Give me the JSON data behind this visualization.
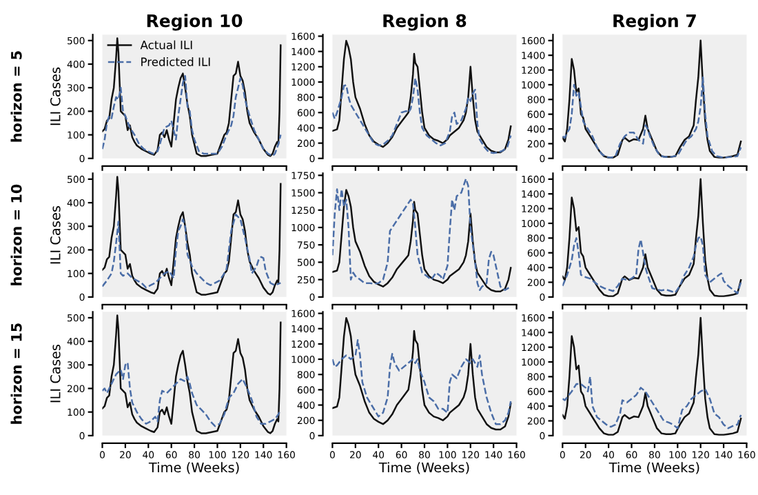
{
  "chart_data": [
    {
      "type": "line",
      "title": "Region 10",
      "ylabel": "ILI Cases",
      "annotations": [
        "horizon = 5"
      ],
      "xlim": [
        0,
        160
      ],
      "xticks": [
        0,
        20,
        40,
        60,
        80,
        100,
        120,
        140,
        160
      ],
      "ylim": [
        0,
        525
      ],
      "yticks": [
        0,
        100,
        200,
        300,
        400,
        500
      ],
      "tick_labels": "y",
      "legend": "top left",
      "grid": false,
      "series": [
        {
          "name": "Actual ILI",
          "color": "#111111",
          "line_style": "solid",
          "x": [
            0,
            2,
            4,
            6,
            8,
            10,
            12,
            13,
            14,
            16,
            18,
            20,
            22,
            24,
            26,
            28,
            30,
            34,
            38,
            42,
            45,
            48,
            50,
            52,
            54,
            56,
            58,
            60,
            62,
            64,
            66,
            68,
            70,
            72,
            74,
            76,
            78,
            80,
            82,
            86,
            90,
            95,
            100,
            103,
            106,
            108,
            110,
            112,
            114,
            116,
            118,
            120,
            122,
            124,
            126,
            128,
            132,
            136,
            140,
            144,
            146,
            148,
            150,
            152,
            153,
            154,
            155
          ],
          "values": [
            115,
            125,
            160,
            170,
            250,
            300,
            430,
            510,
            450,
            200,
            190,
            180,
            120,
            140,
            90,
            70,
            55,
            40,
            30,
            20,
            15,
            35,
            100,
            110,
            90,
            120,
            80,
            50,
            150,
            250,
            300,
            340,
            360,
            300,
            230,
            180,
            100,
            60,
            20,
            10,
            10,
            15,
            20,
            60,
            100,
            110,
            150,
            250,
            350,
            360,
            410,
            350,
            330,
            280,
            200,
            150,
            110,
            80,
            40,
            15,
            10,
            20,
            50,
            70,
            60,
            200,
            480
          ]
        },
        {
          "name": "Predicted ILI",
          "color": "#4a6da7",
          "line_style": "dashed",
          "x": [
            0,
            2,
            4,
            6,
            8,
            10,
            12,
            14,
            16,
            18,
            20,
            24,
            28,
            32,
            36,
            40,
            44,
            48,
            50,
            54,
            58,
            60,
            62,
            64,
            66,
            68,
            70,
            72,
            74,
            76,
            78,
            80,
            84,
            88,
            94,
            100,
            104,
            108,
            112,
            114,
            116,
            118,
            120,
            122,
            124,
            128,
            132,
            136,
            140,
            144,
            148,
            150,
            153,
            155
          ],
          "values": [
            40,
            80,
            150,
            180,
            170,
            220,
            260,
            250,
            300,
            200,
            180,
            130,
            100,
            60,
            40,
            30,
            20,
            30,
            60,
            130,
            140,
            160,
            120,
            80,
            180,
            250,
            320,
            350,
            220,
            200,
            120,
            80,
            30,
            20,
            20,
            20,
            50,
            100,
            140,
            180,
            260,
            300,
            340,
            310,
            250,
            180,
            120,
            80,
            40,
            20,
            10,
            20,
            60,
            100
          ]
        }
      ]
    },
    {
      "type": "line",
      "title": "Region 8",
      "xlim": [
        0,
        160
      ],
      "xticks": [
        0,
        20,
        40,
        60,
        80,
        100,
        120,
        140,
        160
      ],
      "ylim": [
        0,
        1620
      ],
      "yticks": [
        0,
        200,
        400,
        600,
        800,
        1000,
        1200,
        1400,
        1600
      ],
      "tick_labels": "y",
      "grid": false,
      "series": [
        {
          "color": "#111111",
          "line_style": "solid",
          "x": [
            0,
            4,
            6,
            8,
            10,
            12,
            14,
            16,
            18,
            20,
            24,
            28,
            32,
            36,
            40,
            44,
            48,
            52,
            56,
            60,
            64,
            66,
            68,
            70,
            71,
            72,
            74,
            76,
            78,
            80,
            84,
            88,
            92,
            96,
            100,
            102,
            106,
            110,
            114,
            116,
            118,
            120,
            122,
            124,
            126,
            130,
            134,
            138,
            142,
            146,
            150,
            153,
            155
          ],
          "values": [
            360,
            380,
            500,
            900,
            1300,
            1540,
            1450,
            1300,
            1000,
            800,
            650,
            450,
            300,
            220,
            180,
            150,
            200,
            280,
            400,
            480,
            560,
            600,
            800,
            1100,
            1370,
            1250,
            1200,
            900,
            600,
            400,
            300,
            250,
            230,
            200,
            250,
            300,
            350,
            400,
            500,
            600,
            800,
            1200,
            800,
            500,
            350,
            250,
            150,
            100,
            80,
            80,
            120,
            250,
            420
          ]
        },
        {
          "color": "#4a6da7",
          "line_style": "dashed",
          "x": [
            0,
            2,
            4,
            6,
            8,
            10,
            12,
            14,
            16,
            20,
            24,
            28,
            32,
            36,
            40,
            44,
            48,
            52,
            56,
            60,
            64,
            66,
            68,
            70,
            72,
            74,
            76,
            78,
            82,
            86,
            90,
            94,
            98,
            102,
            104,
            106,
            108,
            112,
            116,
            118,
            120,
            122,
            124,
            126,
            128,
            132,
            136,
            140,
            144,
            148,
            152,
            155
          ],
          "values": [
            600,
            520,
            600,
            700,
            800,
            950,
            960,
            800,
            700,
            600,
            500,
            400,
            300,
            200,
            170,
            180,
            230,
            300,
            450,
            600,
            620,
            600,
            650,
            800,
            1050,
            900,
            600,
            400,
            300,
            250,
            200,
            170,
            200,
            350,
            550,
            600,
            450,
            500,
            650,
            800,
            750,
            850,
            900,
            450,
            250,
            150,
            80,
            70,
            80,
            100,
            150,
            300
          ]
        }
      ]
    },
    {
      "type": "line",
      "title": "Region 7",
      "xlim": [
        0,
        160
      ],
      "xticks": [
        0,
        20,
        40,
        60,
        80,
        100,
        120,
        140,
        160
      ],
      "ylim": [
        0,
        1680
      ],
      "yticks": [
        0,
        200,
        400,
        600,
        800,
        1000,
        1200,
        1400,
        1600
      ],
      "tick_labels": "y",
      "grid": false,
      "series": [
        {
          "color": "#111111",
          "line_style": "solid",
          "x": [
            0,
            2,
            4,
            6,
            8,
            10,
            12,
            14,
            16,
            18,
            20,
            24,
            28,
            32,
            36,
            40,
            44,
            48,
            50,
            52,
            54,
            58,
            62,
            66,
            70,
            72,
            74,
            78,
            82,
            86,
            90,
            94,
            98,
            102,
            106,
            110,
            114,
            116,
            118,
            120,
            122,
            124,
            126,
            128,
            132,
            136,
            140,
            144,
            148,
            152,
            155
          ],
          "values": [
            280,
            230,
            400,
            800,
            1350,
            1200,
            900,
            950,
            600,
            550,
            400,
            300,
            200,
            100,
            30,
            10,
            10,
            50,
            150,
            250,
            280,
            230,
            260,
            250,
            400,
            580,
            400,
            250,
            100,
            30,
            20,
            20,
            30,
            150,
            250,
            300,
            450,
            800,
            1100,
            1600,
            1000,
            500,
            250,
            100,
            20,
            10,
            10,
            20,
            30,
            50,
            230
          ]
        },
        {
          "color": "#4a6da7",
          "line_style": "dashed",
          "x": [
            0,
            2,
            4,
            6,
            8,
            10,
            12,
            14,
            16,
            18,
            22,
            26,
            30,
            34,
            38,
            42,
            46,
            50,
            54,
            58,
            62,
            66,
            70,
            72,
            74,
            76,
            80,
            84,
            88,
            94,
            100,
            104,
            108,
            112,
            116,
            118,
            120,
            122,
            124,
            126,
            130,
            134,
            140,
            146,
            152,
            155
          ],
          "values": [
            300,
            280,
            350,
            400,
            600,
            1000,
            850,
            900,
            700,
            500,
            400,
            300,
            150,
            60,
            20,
            10,
            30,
            200,
            300,
            350,
            350,
            250,
            200,
            450,
            400,
            300,
            150,
            50,
            20,
            20,
            40,
            150,
            250,
            300,
            400,
            500,
            700,
            1100,
            600,
            300,
            100,
            30,
            10,
            20,
            30,
            150
          ]
        }
      ]
    },
    {
      "type": "line",
      "ylabel": "ILI Cases",
      "annotations": [
        "horizon = 10"
      ],
      "xlim": [
        0,
        160
      ],
      "xticks": [
        0,
        20,
        40,
        60,
        80,
        100,
        120,
        140,
        160
      ],
      "ylim": [
        0,
        525
      ],
      "yticks": [
        0,
        100,
        200,
        300,
        400,
        500
      ],
      "tick_labels": "y",
      "grid": false,
      "series": [
        {
          "color": "#111111",
          "line_style": "solid",
          "x": [
            0,
            2,
            4,
            6,
            8,
            10,
            12,
            13,
            14,
            16,
            18,
            20,
            22,
            24,
            26,
            28,
            30,
            34,
            38,
            42,
            45,
            48,
            50,
            52,
            54,
            56,
            58,
            60,
            62,
            64,
            66,
            68,
            70,
            72,
            74,
            76,
            78,
            80,
            82,
            86,
            90,
            95,
            100,
            103,
            106,
            108,
            110,
            112,
            114,
            116,
            118,
            120,
            122,
            124,
            126,
            128,
            132,
            136,
            140,
            144,
            146,
            148,
            150,
            152,
            153,
            154,
            155
          ],
          "values": [
            115,
            125,
            160,
            170,
            250,
            300,
            430,
            510,
            450,
            200,
            190,
            180,
            120,
            140,
            90,
            70,
            55,
            40,
            30,
            20,
            15,
            35,
            100,
            110,
            90,
            120,
            80,
            50,
            150,
            250,
            300,
            340,
            360,
            300,
            230,
            180,
            100,
            60,
            20,
            10,
            10,
            15,
            20,
            60,
            100,
            110,
            150,
            250,
            350,
            360,
            410,
            350,
            330,
            280,
            200,
            150,
            110,
            80,
            40,
            15,
            10,
            20,
            50,
            70,
            60,
            200,
            480
          ]
        },
        {
          "color": "#4a6da7",
          "line_style": "dashed",
          "x": [
            0,
            4,
            8,
            10,
            12,
            14,
            16,
            18,
            22,
            26,
            30,
            34,
            38,
            42,
            46,
            50,
            54,
            58,
            62,
            64,
            66,
            68,
            70,
            72,
            74,
            78,
            82,
            86,
            90,
            94,
            98,
            102,
            106,
            108,
            112,
            116,
            120,
            124,
            128,
            130,
            134,
            136,
            138,
            140,
            142,
            146,
            150,
            155
          ],
          "values": [
            45,
            70,
            100,
            150,
            230,
            320,
            100,
            90,
            100,
            80,
            70,
            60,
            40,
            50,
            60,
            80,
            100,
            110,
            80,
            200,
            280,
            300,
            330,
            300,
            180,
            130,
            100,
            80,
            60,
            50,
            60,
            70,
            100,
            120,
            280,
            350,
            330,
            250,
            160,
            100,
            130,
            160,
            170,
            165,
            110,
            60,
            50,
            60
          ]
        }
      ]
    },
    {
      "type": "line",
      "xlim": [
        0,
        160
      ],
      "xticks": [
        0,
        20,
        40,
        60,
        80,
        100,
        120,
        140,
        160
      ],
      "ylim": [
        0,
        1780
      ],
      "yticks": [
        0,
        250,
        500,
        750,
        1000,
        1250,
        1500,
        1750
      ],
      "tick_labels": "y",
      "grid": false,
      "series": [
        {
          "color": "#111111",
          "line_style": "solid",
          "x": [
            0,
            4,
            6,
            8,
            10,
            12,
            14,
            16,
            18,
            20,
            24,
            28,
            32,
            36,
            40,
            44,
            48,
            52,
            56,
            60,
            64,
            66,
            68,
            70,
            71,
            72,
            74,
            76,
            78,
            80,
            84,
            88,
            92,
            96,
            100,
            102,
            106,
            110,
            114,
            116,
            118,
            120,
            122,
            124,
            126,
            130,
            134,
            138,
            142,
            146,
            150,
            153,
            155
          ],
          "values": [
            360,
            380,
            500,
            900,
            1300,
            1540,
            1450,
            1300,
            1000,
            800,
            650,
            450,
            300,
            220,
            180,
            150,
            200,
            280,
            400,
            480,
            560,
            600,
            800,
            1100,
            1370,
            1250,
            1200,
            900,
            600,
            400,
            300,
            250,
            230,
            200,
            250,
            300,
            350,
            400,
            500,
            600,
            800,
            1200,
            800,
            500,
            350,
            250,
            150,
            100,
            80,
            80,
            120,
            250,
            420
          ]
        },
        {
          "color": "#4a6da7",
          "line_style": "dashed",
          "x": [
            0,
            2,
            4,
            6,
            8,
            10,
            12,
            14,
            16,
            18,
            20,
            24,
            28,
            32,
            36,
            40,
            44,
            48,
            50,
            52,
            54,
            56,
            60,
            64,
            68,
            70,
            72,
            74,
            78,
            82,
            86,
            90,
            94,
            96,
            100,
            102,
            104,
            106,
            108,
            112,
            116,
            118,
            120,
            124,
            126,
            128,
            130,
            134,
            136,
            138,
            140,
            142,
            146,
            150,
            155
          ],
          "values": [
            600,
            1200,
            1550,
            1250,
            1550,
            1300,
            1400,
            1000,
            250,
            350,
            300,
            250,
            200,
            200,
            190,
            200,
            250,
            500,
            950,
            1000,
            1050,
            1100,
            1200,
            1300,
            1400,
            1350,
            1000,
            600,
            350,
            300,
            250,
            350,
            300,
            250,
            450,
            950,
            1400,
            1250,
            1450,
            1500,
            1700,
            1600,
            1000,
            500,
            200,
            100,
            150,
            200,
            550,
            650,
            600,
            450,
            150,
            100,
            150
          ]
        }
      ]
    },
    {
      "type": "line",
      "xlim": [
        0,
        160
      ],
      "xticks": [
        0,
        20,
        40,
        60,
        80,
        100,
        120,
        140,
        160
      ],
      "ylim": [
        0,
        1680
      ],
      "yticks": [
        0,
        200,
        400,
        600,
        800,
        1000,
        1200,
        1400,
        1600
      ],
      "tick_labels": "y",
      "grid": false,
      "series": [
        {
          "color": "#111111",
          "line_style": "solid",
          "x": [
            0,
            2,
            4,
            6,
            8,
            10,
            12,
            14,
            16,
            18,
            20,
            24,
            28,
            32,
            36,
            40,
            44,
            48,
            50,
            52,
            54,
            58,
            62,
            66,
            70,
            72,
            74,
            78,
            82,
            86,
            90,
            94,
            98,
            102,
            106,
            110,
            114,
            116,
            118,
            120,
            122,
            124,
            126,
            128,
            132,
            136,
            140,
            144,
            148,
            152,
            155
          ],
          "values": [
            280,
            230,
            400,
            800,
            1350,
            1200,
            900,
            950,
            600,
            550,
            400,
            300,
            200,
            100,
            30,
            10,
            10,
            50,
            150,
            250,
            280,
            230,
            260,
            250,
            400,
            580,
            400,
            250,
            100,
            30,
            20,
            20,
            30,
            150,
            250,
            300,
            450,
            800,
            1100,
            1600,
            1000,
            500,
            250,
            100,
            20,
            10,
            10,
            20,
            30,
            50,
            230
          ]
        },
        {
          "color": "#4a6da7",
          "line_style": "dashed",
          "x": [
            0,
            4,
            8,
            10,
            12,
            14,
            16,
            20,
            24,
            28,
            32,
            36,
            40,
            44,
            48,
            52,
            56,
            60,
            64,
            66,
            68,
            70,
            72,
            74,
            78,
            82,
            86,
            90,
            94,
            98,
            102,
            106,
            110,
            114,
            116,
            118,
            120,
            122,
            124,
            128,
            132,
            136,
            138,
            140,
            144,
            148,
            152,
            155
          ],
          "values": [
            150,
            300,
            500,
            700,
            800,
            600,
            300,
            270,
            250,
            200,
            150,
            120,
            100,
            80,
            150,
            250,
            230,
            250,
            300,
            650,
            780,
            600,
            400,
            300,
            120,
            100,
            90,
            100,
            80,
            60,
            150,
            300,
            400,
            550,
            700,
            800,
            820,
            700,
            300,
            200,
            250,
            300,
            320,
            220,
            150,
            100,
            50,
            200
          ]
        }
      ]
    },
    {
      "type": "line",
      "ylabel": "ILI Cases",
      "xlabel": "Time (Weeks)",
      "annotations": [
        "horizon = 15"
      ],
      "xlim": [
        0,
        160
      ],
      "xticks": [
        0,
        20,
        40,
        60,
        80,
        100,
        120,
        140,
        160
      ],
      "ylim": [
        0,
        525
      ],
      "yticks": [
        0,
        100,
        200,
        300,
        400,
        500
      ],
      "grid": false,
      "series": [
        {
          "color": "#111111",
          "line_style": "solid",
          "x": [
            0,
            2,
            4,
            6,
            8,
            10,
            12,
            13,
            14,
            16,
            18,
            20,
            22,
            24,
            26,
            28,
            30,
            34,
            38,
            42,
            45,
            48,
            50,
            52,
            54,
            56,
            58,
            60,
            62,
            64,
            66,
            68,
            70,
            72,
            74,
            76,
            78,
            80,
            82,
            86,
            90,
            95,
            100,
            103,
            106,
            108,
            110,
            112,
            114,
            116,
            118,
            120,
            122,
            124,
            126,
            128,
            132,
            136,
            140,
            144,
            146,
            148,
            150,
            152,
            153,
            154,
            155
          ],
          "values": [
            115,
            125,
            160,
            170,
            250,
            300,
            430,
            510,
            450,
            200,
            190,
            180,
            120,
            140,
            90,
            70,
            55,
            40,
            30,
            20,
            15,
            35,
            100,
            110,
            90,
            120,
            80,
            50,
            150,
            250,
            300,
            340,
            360,
            300,
            230,
            180,
            100,
            60,
            20,
            10,
            10,
            15,
            20,
            60,
            100,
            110,
            150,
            250,
            350,
            360,
            410,
            350,
            330,
            280,
            200,
            150,
            110,
            80,
            40,
            15,
            10,
            20,
            50,
            70,
            60,
            200,
            480
          ]
        },
        {
          "color": "#4a6da7",
          "line_style": "dashed",
          "x": [
            0,
            2,
            4,
            8,
            12,
            16,
            18,
            20,
            22,
            24,
            26,
            30,
            34,
            38,
            42,
            46,
            48,
            50,
            52,
            56,
            60,
            64,
            68,
            72,
            74,
            76,
            78,
            82,
            86,
            90,
            94,
            98,
            102,
            106,
            110,
            114,
            118,
            122,
            126,
            130,
            134,
            138,
            142,
            146,
            150,
            153,
            155
          ],
          "values": [
            190,
            200,
            180,
            220,
            260,
            280,
            240,
            300,
            310,
            200,
            140,
            100,
            70,
            50,
            60,
            80,
            60,
            150,
            190,
            180,
            200,
            220,
            240,
            230,
            250,
            220,
            180,
            130,
            110,
            90,
            60,
            40,
            50,
            90,
            160,
            180,
            220,
            240,
            200,
            150,
            80,
            50,
            50,
            60,
            70,
            90,
            110
          ]
        }
      ]
    },
    {
      "type": "line",
      "xlabel": "Time (Weeks)",
      "xlim": [
        0,
        160
      ],
      "xticks": [
        0,
        20,
        40,
        60,
        80,
        100,
        120,
        140,
        160
      ],
      "ylim": [
        0,
        1620
      ],
      "yticks": [
        0,
        200,
        400,
        600,
        800,
        1000,
        1200,
        1400,
        1600
      ],
      "grid": false,
      "series": [
        {
          "color": "#111111",
          "line_style": "solid",
          "x": [
            0,
            4,
            6,
            8,
            10,
            12,
            14,
            16,
            18,
            20,
            24,
            28,
            32,
            36,
            40,
            44,
            48,
            52,
            56,
            60,
            64,
            66,
            68,
            70,
            71,
            72,
            74,
            76,
            78,
            80,
            84,
            88,
            92,
            96,
            100,
            102,
            106,
            110,
            114,
            116,
            118,
            120,
            122,
            124,
            126,
            130,
            134,
            138,
            142,
            146,
            150,
            153,
            155
          ],
          "values": [
            360,
            380,
            500,
            900,
            1300,
            1540,
            1450,
            1300,
            1000,
            800,
            650,
            450,
            300,
            220,
            180,
            150,
            200,
            280,
            400,
            480,
            560,
            600,
            800,
            1100,
            1370,
            1250,
            1200,
            900,
            600,
            400,
            300,
            250,
            230,
            200,
            250,
            300,
            350,
            400,
            500,
            600,
            800,
            1200,
            800,
            500,
            350,
            250,
            150,
            100,
            80,
            80,
            120,
            250,
            420
          ]
        },
        {
          "color": "#4a6da7",
          "line_style": "dashed",
          "x": [
            0,
            2,
            4,
            8,
            12,
            16,
            20,
            22,
            24,
            26,
            30,
            34,
            38,
            40,
            44,
            48,
            50,
            52,
            54,
            58,
            62,
            66,
            70,
            72,
            74,
            76,
            80,
            84,
            88,
            92,
            96,
            100,
            102,
            104,
            108,
            112,
            116,
            120,
            122,
            126,
            128,
            130,
            134,
            138,
            142,
            146,
            150,
            153,
            155
          ],
          "values": [
            1000,
            900,
            920,
            1000,
            1050,
            1000,
            1050,
            1250,
            1050,
            700,
            500,
            400,
            300,
            250,
            300,
            500,
            900,
            1070,
            950,
            850,
            900,
            950,
            1000,
            950,
            1000,
            850,
            700,
            500,
            450,
            350,
            350,
            300,
            700,
            800,
            750,
            900,
            1000,
            950,
            1000,
            900,
            1050,
            800,
            500,
            300,
            150,
            150,
            200,
            300,
            450
          ]
        }
      ]
    },
    {
      "type": "line",
      "xlabel": "Time (Weeks)",
      "xlim": [
        0,
        160
      ],
      "xticks": [
        0,
        20,
        40,
        60,
        80,
        100,
        120,
        140,
        160
      ],
      "ylim": [
        0,
        1680
      ],
      "yticks": [
        0,
        200,
        400,
        600,
        800,
        1000,
        1200,
        1400,
        1600
      ],
      "grid": false,
      "series": [
        {
          "color": "#111111",
          "line_style": "solid",
          "x": [
            0,
            2,
            4,
            6,
            8,
            10,
            12,
            14,
            16,
            18,
            20,
            24,
            28,
            32,
            36,
            40,
            44,
            48,
            50,
            52,
            54,
            58,
            62,
            66,
            70,
            72,
            74,
            78,
            82,
            86,
            90,
            94,
            98,
            102,
            106,
            110,
            114,
            116,
            118,
            120,
            122,
            124,
            126,
            128,
            132,
            136,
            140,
            144,
            148,
            152,
            155
          ],
          "values": [
            280,
            230,
            400,
            800,
            1350,
            1200,
            900,
            950,
            600,
            550,
            400,
            300,
            200,
            100,
            30,
            10,
            10,
            50,
            150,
            250,
            280,
            230,
            260,
            250,
            400,
            580,
            400,
            250,
            100,
            30,
            20,
            20,
            30,
            150,
            250,
            300,
            450,
            800,
            1100,
            1600,
            1000,
            500,
            250,
            100,
            20,
            10,
            10,
            20,
            30,
            50,
            230
          ]
        },
        {
          "color": "#4a6da7",
          "line_style": "dashed",
          "x": [
            0,
            2,
            4,
            8,
            12,
            16,
            20,
            22,
            24,
            26,
            30,
            34,
            38,
            42,
            46,
            50,
            52,
            56,
            60,
            64,
            68,
            72,
            76,
            80,
            84,
            88,
            92,
            96,
            100,
            104,
            108,
            112,
            116,
            120,
            124,
            128,
            132,
            136,
            140,
            144,
            148,
            152,
            155
          ],
          "values": [
            500,
            480,
            520,
            600,
            700,
            700,
            650,
            600,
            800,
            400,
            250,
            200,
            150,
            120,
            150,
            300,
            480,
            450,
            500,
            550,
            650,
            600,
            500,
            400,
            300,
            200,
            180,
            150,
            100,
            350,
            400,
            500,
            550,
            600,
            630,
            500,
            300,
            250,
            150,
            100,
            130,
            150,
            280
          ]
        }
      ]
    }
  ]
}
